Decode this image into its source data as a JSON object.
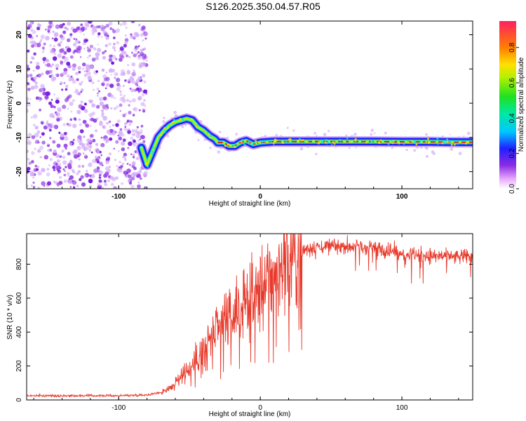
{
  "title": "S126.2025.350.04.57.R05",
  "colors": {
    "snr_line": "#e83a2c",
    "scatter": "#8b2be2",
    "ridge_outer": "#1f1fff",
    "ridge_mid": "#10e0d0",
    "ridge_core": "#e02020"
  },
  "chart_data": [
    {
      "type": "heatmap",
      "name": "spectrogram",
      "xlabel": "Height of straight line (km)",
      "ylabel": "Frequency (Hz)",
      "xlim": [
        -165,
        150
      ],
      "ylim": [
        -25,
        24
      ],
      "xticks": [
        -100,
        0,
        100
      ],
      "yticks": [
        -20,
        -10,
        0,
        10,
        20
      ],
      "xtick_labels": [
        "-100",
        "0",
        "100"
      ],
      "ytick_labels": [
        "-20",
        "-10",
        "0",
        "10",
        "20"
      ],
      "noise_region_x": [
        -165,
        -80
      ],
      "ridge": {
        "x": [
          -84,
          -80,
          -76,
          -72,
          -68,
          -64,
          -60,
          -56,
          -52,
          -48,
          -44,
          -40,
          -36,
          -32,
          -30,
          -26,
          -22,
          -18,
          -14,
          -10,
          -5,
          0,
          10,
          20,
          40,
          60,
          80,
          100,
          120,
          140,
          150
        ],
        "y": [
          -13,
          -18,
          -14,
          -10,
          -8,
          -6.5,
          -5.5,
          -5,
          -4.5,
          -5,
          -7,
          -8,
          -9.5,
          -10.5,
          -11.5,
          -11.5,
          -12.5,
          -12.5,
          -11.5,
          -11,
          -12,
          -11.5,
          -11.2,
          -11.2,
          -11.2,
          -11.2,
          -11.2,
          -11.3,
          -11.3,
          -11.4,
          -11.4
        ]
      },
      "colorbar": {
        "label": "Normalized spectral amplitude",
        "range": [
          0,
          0.95
        ],
        "ticks": [
          0.0,
          0.2,
          0.4,
          0.6,
          0.8
        ],
        "tick_labels": [
          "0.0",
          "0.2",
          "0.4",
          "0.6",
          "0.8"
        ]
      }
    },
    {
      "type": "line",
      "name": "snr",
      "xlabel": "Height of straight line (km)",
      "ylabel": "SNR (10 * v/v)",
      "xlim": [
        -165,
        150
      ],
      "ylim": [
        0,
        980
      ],
      "xticks": [
        -100,
        0,
        100
      ],
      "yticks": [
        0,
        200,
        400,
        600,
        800
      ],
      "xtick_labels": [
        "-100",
        "0",
        "100"
      ],
      "ytick_labels": [
        "0",
        "200",
        "400",
        "600",
        "800"
      ],
      "series": [
        {
          "name": "SNR",
          "x": [
            -165,
            -150,
            -120,
            -100,
            -80,
            -70,
            -60,
            -55,
            -50,
            -45,
            -40,
            -35,
            -30,
            -25,
            -20,
            -15,
            -10,
            -5,
            0,
            5,
            10,
            15,
            20,
            25,
            30,
            35,
            40,
            50,
            60,
            70,
            80,
            90,
            100,
            110,
            120,
            130,
            140,
            145,
            150
          ],
          "y": [
            25,
            25,
            25,
            25,
            30,
            45,
            90,
            150,
            180,
            230,
            290,
            350,
            400,
            450,
            480,
            520,
            560,
            600,
            630,
            670,
            740,
            790,
            820,
            860,
            880,
            900,
            905,
            905,
            910,
            905,
            900,
            880,
            870,
            860,
            850,
            845,
            840,
            845,
            850
          ]
        }
      ]
    }
  ]
}
